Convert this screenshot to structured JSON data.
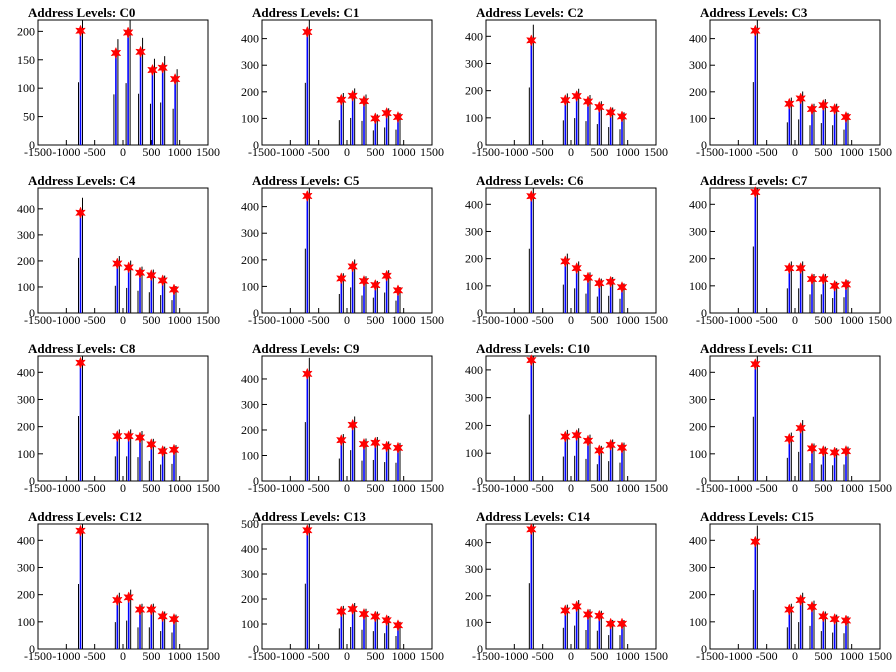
{
  "figure_title": "",
  "colors": {
    "frame": "#000000",
    "spike_primary": "#0000ff",
    "spike_secondary": "#000000",
    "marker": "#ff0000"
  },
  "chart_data": [
    {
      "type": "histogram",
      "title": "Address Levels: C0",
      "xlim": [
        -1500,
        1500
      ],
      "ylim": [
        0,
        220
      ],
      "xticks": [
        -1500,
        -1000,
        -500,
        0,
        500,
        1000,
        1500
      ],
      "yticks": [
        0,
        50,
        100,
        150,
        200
      ],
      "xticklabels": [
        "-1500",
        "-1000",
        "-500",
        "0",
        "500",
        "1000",
        "1500"
      ],
      "yticklabels": [
        "0",
        "50",
        "100",
        "150",
        "200"
      ],
      "peaks": [
        {
          "x": -750,
          "y": 201
        },
        {
          "x": -125,
          "y": 162
        },
        {
          "x": 90,
          "y": 198
        },
        {
          "x": 310,
          "y": 164
        },
        {
          "x": 520,
          "y": 132
        },
        {
          "x": 700,
          "y": 136
        },
        {
          "x": 920,
          "y": 116
        }
      ]
    },
    {
      "type": "histogram",
      "title": "Address Levels: C1",
      "xlim": [
        -1500,
        1500
      ],
      "ylim": [
        0,
        470
      ],
      "xticks": [
        -1500,
        -1000,
        -500,
        0,
        500,
        1000,
        1500
      ],
      "yticks": [
        0,
        100,
        200,
        300,
        400
      ],
      "xticklabels": [
        "-1500",
        "-1000",
        "-500",
        "0",
        "500",
        "1000",
        "1500"
      ],
      "yticklabels": [
        "0",
        "100",
        "200",
        "300",
        "400"
      ],
      "peaks": [
        {
          "x": -700,
          "y": 425
        },
        {
          "x": -100,
          "y": 170
        },
        {
          "x": 100,
          "y": 185
        },
        {
          "x": 300,
          "y": 165
        },
        {
          "x": 500,
          "y": 100
        },
        {
          "x": 700,
          "y": 120
        },
        {
          "x": 900,
          "y": 105
        }
      ]
    },
    {
      "type": "histogram",
      "title": "Address Levels: C2",
      "xlim": [
        -1500,
        1500
      ],
      "ylim": [
        0,
        460
      ],
      "xticks": [
        -1500,
        -1000,
        -500,
        0,
        500,
        1000,
        1500
      ],
      "yticks": [
        0,
        100,
        200,
        300,
        400
      ],
      "xticklabels": [
        "-1500",
        "-1000",
        "-500",
        "0",
        "500",
        "1000",
        "1500"
      ],
      "yticklabels": [
        "0",
        "100",
        "200",
        "300",
        "400"
      ],
      "peaks": [
        {
          "x": -700,
          "y": 385
        },
        {
          "x": -100,
          "y": 165
        },
        {
          "x": 100,
          "y": 180
        },
        {
          "x": 300,
          "y": 160
        },
        {
          "x": 500,
          "y": 140
        },
        {
          "x": 700,
          "y": 120
        },
        {
          "x": 900,
          "y": 105
        }
      ]
    },
    {
      "type": "histogram",
      "title": "Address Levels: C3",
      "xlim": [
        -1500,
        1500
      ],
      "ylim": [
        0,
        470
      ],
      "xticks": [
        -1500,
        -1000,
        -500,
        0,
        500,
        1000,
        1500
      ],
      "yticks": [
        0,
        100,
        200,
        300,
        400
      ],
      "xticklabels": [
        "-1500",
        "-1000",
        "-500",
        "0",
        "500",
        "1000",
        "1500"
      ],
      "yticklabels": [
        "0",
        "100",
        "200",
        "300",
        "400"
      ],
      "peaks": [
        {
          "x": -700,
          "y": 430
        },
        {
          "x": -100,
          "y": 155
        },
        {
          "x": 100,
          "y": 175
        },
        {
          "x": 300,
          "y": 135
        },
        {
          "x": 500,
          "y": 150
        },
        {
          "x": 700,
          "y": 135
        },
        {
          "x": 900,
          "y": 105
        }
      ]
    },
    {
      "type": "histogram",
      "title": "Address Levels: C4",
      "xlim": [
        -1500,
        1500
      ],
      "ylim": [
        0,
        480
      ],
      "xticks": [
        -1500,
        -1000,
        -500,
        0,
        500,
        1000,
        1500
      ],
      "yticks": [
        0,
        100,
        200,
        300,
        400
      ],
      "xticklabels": [
        "-1500",
        "-1000",
        "-500",
        "0",
        "500",
        "1000",
        "1500"
      ],
      "yticklabels": [
        "0",
        "100",
        "200",
        "300",
        "400"
      ],
      "peaks": [
        {
          "x": -750,
          "y": 385
        },
        {
          "x": -100,
          "y": 190
        },
        {
          "x": 100,
          "y": 175
        },
        {
          "x": 300,
          "y": 155
        },
        {
          "x": 500,
          "y": 145
        },
        {
          "x": 700,
          "y": 125
        },
        {
          "x": 900,
          "y": 90
        }
      ]
    },
    {
      "type": "histogram",
      "title": "Address Levels: C5",
      "xlim": [
        -1500,
        1500
      ],
      "ylim": [
        0,
        470
      ],
      "xticks": [
        -1500,
        -1000,
        -500,
        0,
        500,
        1000,
        1500
      ],
      "yticks": [
        0,
        100,
        200,
        300,
        400
      ],
      "xticklabels": [
        "-1500",
        "-1000",
        "-500",
        "0",
        "500",
        "1000",
        "1500"
      ],
      "yticklabels": [
        "0",
        "100",
        "200",
        "300",
        "400"
      ],
      "peaks": [
        {
          "x": -700,
          "y": 440
        },
        {
          "x": -100,
          "y": 130
        },
        {
          "x": 100,
          "y": 175
        },
        {
          "x": 300,
          "y": 120
        },
        {
          "x": 500,
          "y": 105
        },
        {
          "x": 700,
          "y": 140
        },
        {
          "x": 900,
          "y": 85
        }
      ]
    },
    {
      "type": "histogram",
      "title": "Address Levels: C6",
      "xlim": [
        -1500,
        1500
      ],
      "ylim": [
        0,
        460
      ],
      "xticks": [
        -1500,
        -1000,
        -500,
        0,
        500,
        1000,
        1500
      ],
      "yticks": [
        0,
        100,
        200,
        300,
        400
      ],
      "xticklabels": [
        "-1500",
        "-1000",
        "-500",
        "0",
        "500",
        "1000",
        "1500"
      ],
      "yticklabels": [
        "0",
        "100",
        "200",
        "300",
        "400"
      ],
      "peaks": [
        {
          "x": -700,
          "y": 430
        },
        {
          "x": -100,
          "y": 190
        },
        {
          "x": 100,
          "y": 165
        },
        {
          "x": 300,
          "y": 130
        },
        {
          "x": 500,
          "y": 110
        },
        {
          "x": 700,
          "y": 115
        },
        {
          "x": 900,
          "y": 95
        }
      ]
    },
    {
      "type": "histogram",
      "title": "Address Levels: C7",
      "xlim": [
        -1500,
        1500
      ],
      "ylim": [
        0,
        460
      ],
      "xticks": [
        -1500,
        -1000,
        -500,
        0,
        500,
        1000,
        1500
      ],
      "yticks": [
        0,
        100,
        200,
        300,
        400
      ],
      "xticklabels": [
        "-1500",
        "-1000",
        "-500",
        "0",
        "500",
        "1000",
        "1500"
      ],
      "yticklabels": [
        "0",
        "100",
        "200",
        "300",
        "400"
      ],
      "peaks": [
        {
          "x": -700,
          "y": 445
        },
        {
          "x": -100,
          "y": 165
        },
        {
          "x": 100,
          "y": 165
        },
        {
          "x": 300,
          "y": 125
        },
        {
          "x": 500,
          "y": 125
        },
        {
          "x": 700,
          "y": 100
        },
        {
          "x": 900,
          "y": 105
        }
      ]
    },
    {
      "type": "histogram",
      "title": "Address Levels: C8",
      "xlim": [
        -1500,
        1500
      ],
      "ylim": [
        0,
        460
      ],
      "xticks": [
        -1500,
        -1000,
        -500,
        0,
        500,
        1000,
        1500
      ],
      "yticks": [
        0,
        100,
        200,
        300,
        400
      ],
      "xticklabels": [
        "-1500",
        "-1000",
        "-500",
        "0",
        "500",
        "1000",
        "1500"
      ],
      "yticklabels": [
        "0",
        "100",
        "200",
        "300",
        "400"
      ],
      "peaks": [
        {
          "x": -750,
          "y": 435
        },
        {
          "x": -100,
          "y": 165
        },
        {
          "x": 100,
          "y": 165
        },
        {
          "x": 300,
          "y": 160
        },
        {
          "x": 500,
          "y": 135
        },
        {
          "x": 700,
          "y": 110
        },
        {
          "x": 900,
          "y": 115
        }
      ]
    },
    {
      "type": "histogram",
      "title": "Address Levels: C9",
      "xlim": [
        -1500,
        1500
      ],
      "ylim": [
        0,
        490
      ],
      "xticks": [
        -1500,
        -1000,
        -500,
        0,
        500,
        1000,
        1500
      ],
      "yticks": [
        0,
        100,
        200,
        300,
        400
      ],
      "xticklabels": [
        "-1500",
        "-1000",
        "-500",
        "0",
        "500",
        "1000",
        "1500"
      ],
      "yticklabels": [
        "0",
        "100",
        "200",
        "300",
        "400"
      ],
      "peaks": [
        {
          "x": -700,
          "y": 420
        },
        {
          "x": -100,
          "y": 160
        },
        {
          "x": 100,
          "y": 220
        },
        {
          "x": 300,
          "y": 145
        },
        {
          "x": 500,
          "y": 150
        },
        {
          "x": 700,
          "y": 135
        },
        {
          "x": 900,
          "y": 130
        }
      ]
    },
    {
      "type": "histogram",
      "title": "Address Levels: C10",
      "xlim": [
        -1500,
        1500
      ],
      "ylim": [
        0,
        450
      ],
      "xticks": [
        -1500,
        -1000,
        -500,
        0,
        500,
        1000,
        1500
      ],
      "yticks": [
        0,
        100,
        200,
        300,
        400
      ],
      "xticklabels": [
        "-1500",
        "-1000",
        "-500",
        "0",
        "500",
        "1000",
        "1500"
      ],
      "yticklabels": [
        "0",
        "100",
        "200",
        "300",
        "400"
      ],
      "peaks": [
        {
          "x": -700,
          "y": 435
        },
        {
          "x": -100,
          "y": 160
        },
        {
          "x": 100,
          "y": 165
        },
        {
          "x": 300,
          "y": 145
        },
        {
          "x": 500,
          "y": 110
        },
        {
          "x": 700,
          "y": 130
        },
        {
          "x": 900,
          "y": 120
        }
      ]
    },
    {
      "type": "histogram",
      "title": "Address Levels: C11",
      "xlim": [
        -1500,
        1500
      ],
      "ylim": [
        0,
        460
      ],
      "xticks": [
        -1500,
        -1000,
        -500,
        0,
        500,
        1000,
        1500
      ],
      "yticks": [
        0,
        100,
        200,
        300,
        400
      ],
      "xticklabels": [
        "-1500",
        "-1000",
        "-500",
        "0",
        "500",
        "1000",
        "1500"
      ],
      "yticklabels": [
        "0",
        "100",
        "200",
        "300",
        "400"
      ],
      "peaks": [
        {
          "x": -700,
          "y": 430
        },
        {
          "x": -100,
          "y": 155
        },
        {
          "x": 100,
          "y": 195
        },
        {
          "x": 300,
          "y": 120
        },
        {
          "x": 500,
          "y": 110
        },
        {
          "x": 700,
          "y": 105
        },
        {
          "x": 900,
          "y": 110
        }
      ]
    },
    {
      "type": "histogram",
      "title": "Address Levels: C12",
      "xlim": [
        -1500,
        1500
      ],
      "ylim": [
        0,
        460
      ],
      "xticks": [
        -1500,
        -1000,
        -500,
        0,
        500,
        1000,
        1500
      ],
      "yticks": [
        0,
        100,
        200,
        300,
        400
      ],
      "xticklabels": [
        "-1500",
        "-1000",
        "-500",
        "0",
        "500",
        "1000",
        "1500"
      ],
      "yticklabels": [
        "0",
        "100",
        "200",
        "300",
        "400"
      ],
      "peaks": [
        {
          "x": -750,
          "y": 435
        },
        {
          "x": -100,
          "y": 180
        },
        {
          "x": 100,
          "y": 190
        },
        {
          "x": 300,
          "y": 145
        },
        {
          "x": 500,
          "y": 145
        },
        {
          "x": 700,
          "y": 120
        },
        {
          "x": 900,
          "y": 110
        }
      ]
    },
    {
      "type": "histogram",
      "title": "Address Levels: C13",
      "xlim": [
        -1500,
        1500
      ],
      "ylim": [
        0,
        500
      ],
      "xticks": [
        -1500,
        -1000,
        -500,
        0,
        500,
        1000,
        1500
      ],
      "yticks": [
        0,
        100,
        200,
        300,
        400,
        500
      ],
      "xticklabels": [
        "-1500",
        "-1000",
        "-500",
        "0",
        "500",
        "1000",
        "1500"
      ],
      "yticklabels": [
        "0",
        "100",
        "200",
        "300",
        "400",
        "500"
      ],
      "peaks": [
        {
          "x": -700,
          "y": 475
        },
        {
          "x": -100,
          "y": 150
        },
        {
          "x": 100,
          "y": 160
        },
        {
          "x": 300,
          "y": 140
        },
        {
          "x": 500,
          "y": 130
        },
        {
          "x": 700,
          "y": 115
        },
        {
          "x": 900,
          "y": 95
        }
      ]
    },
    {
      "type": "histogram",
      "title": "Address Levels: C14",
      "xlim": [
        -1500,
        1500
      ],
      "ylim": [
        0,
        470
      ],
      "xticks": [
        -1500,
        -1000,
        -500,
        0,
        500,
        1000,
        1500
      ],
      "yticks": [
        0,
        100,
        200,
        300,
        400
      ],
      "xticklabels": [
        "-1500",
        "-1000",
        "-500",
        "0",
        "500",
        "1000",
        "1500"
      ],
      "yticklabels": [
        "0",
        "100",
        "200",
        "300",
        "400"
      ],
      "peaks": [
        {
          "x": -700,
          "y": 450
        },
        {
          "x": -100,
          "y": 145
        },
        {
          "x": 100,
          "y": 160
        },
        {
          "x": 300,
          "y": 130
        },
        {
          "x": 500,
          "y": 125
        },
        {
          "x": 700,
          "y": 95
        },
        {
          "x": 900,
          "y": 95
        }
      ]
    },
    {
      "type": "histogram",
      "title": "Address Levels: C15",
      "xlim": [
        -1500,
        1500
      ],
      "ylim": [
        0,
        460
      ],
      "xticks": [
        -1500,
        -1000,
        -500,
        0,
        500,
        1000,
        1500
      ],
      "yticks": [
        0,
        100,
        200,
        300,
        400
      ],
      "xticklabels": [
        "-1500",
        "-1000",
        "-500",
        "0",
        "500",
        "1000",
        "1500"
      ],
      "yticklabels": [
        "0",
        "100",
        "200",
        "300",
        "400"
      ],
      "peaks": [
        {
          "x": -700,
          "y": 395
        },
        {
          "x": -100,
          "y": 145
        },
        {
          "x": 100,
          "y": 180
        },
        {
          "x": 300,
          "y": 155
        },
        {
          "x": 500,
          "y": 120
        },
        {
          "x": 700,
          "y": 110
        },
        {
          "x": 900,
          "y": 105
        }
      ]
    }
  ]
}
